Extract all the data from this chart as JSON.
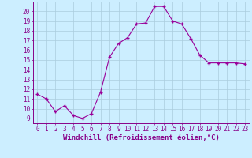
{
  "x": [
    0,
    1,
    2,
    3,
    4,
    5,
    6,
    7,
    8,
    9,
    10,
    11,
    12,
    13,
    14,
    15,
    16,
    17,
    18,
    19,
    20,
    21,
    22,
    23
  ],
  "y": [
    11.5,
    11.0,
    9.7,
    10.3,
    9.3,
    9.0,
    9.5,
    11.7,
    15.3,
    16.7,
    17.3,
    18.7,
    18.8,
    20.5,
    20.5,
    19.0,
    18.7,
    17.2,
    15.5,
    14.7,
    14.7,
    14.7,
    14.7,
    14.6
  ],
  "line_color": "#990099",
  "marker_color": "#990099",
  "bg_color": "#cceeff",
  "grid_color": "#aaccdd",
  "xlabel": "Windchill (Refroidissement éolien,°C)",
  "xlim": [
    -0.5,
    23.5
  ],
  "ylim": [
    8.5,
    21.0
  ],
  "xticks": [
    0,
    1,
    2,
    3,
    4,
    5,
    6,
    7,
    8,
    9,
    10,
    11,
    12,
    13,
    14,
    15,
    16,
    17,
    18,
    19,
    20,
    21,
    22,
    23
  ],
  "yticks": [
    9,
    10,
    11,
    12,
    13,
    14,
    15,
    16,
    17,
    18,
    19,
    20
  ],
  "tick_fontsize": 5.5,
  "xlabel_fontsize": 6.5
}
